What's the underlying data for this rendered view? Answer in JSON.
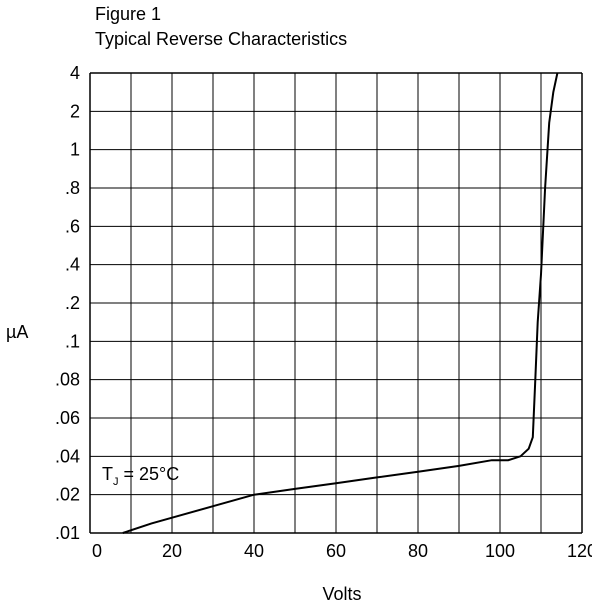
{
  "chart_data": {
    "type": "line",
    "title": "Figure 1",
    "subtitle": "Typical Reverse Characteristics",
    "xlabel": "Volts",
    "ylabel": "µA",
    "xlim": [
      0,
      120
    ],
    "x_ticks": [
      0,
      20,
      40,
      60,
      80,
      100,
      120
    ],
    "x_tick_labels": [
      "0",
      "20",
      "40",
      "60",
      "80",
      "100",
      "120"
    ],
    "y_ticks": [
      0.01,
      0.02,
      0.04,
      0.06,
      0.08,
      0.1,
      0.2,
      0.4,
      0.6,
      0.8,
      1,
      2,
      4
    ],
    "y_tick_labels": [
      ".01",
      ".02",
      ".04",
      ".06",
      ".08",
      ".1",
      ".2",
      ".4",
      ".6",
      ".8",
      "1",
      "2",
      "4"
    ],
    "grid": true,
    "annotation": {
      "prefix": "T",
      "subscript": "J",
      "rest": " = 25°C"
    },
    "series": [
      {
        "x": [
          8,
          15,
          20,
          30,
          40,
          50,
          60,
          70,
          80,
          90,
          98,
          102,
          105,
          107,
          108,
          108.6,
          109.2,
          110,
          111,
          112,
          113,
          114
        ],
        "y": [
          0.01,
          0.0125,
          0.014,
          0.017,
          0.02,
          0.023,
          0.026,
          0.029,
          0.032,
          0.035,
          0.038,
          0.038,
          0.04,
          0.044,
          0.05,
          0.08,
          0.15,
          0.35,
          0.8,
          1.7,
          3.0,
          4.0
        ]
      }
    ]
  }
}
